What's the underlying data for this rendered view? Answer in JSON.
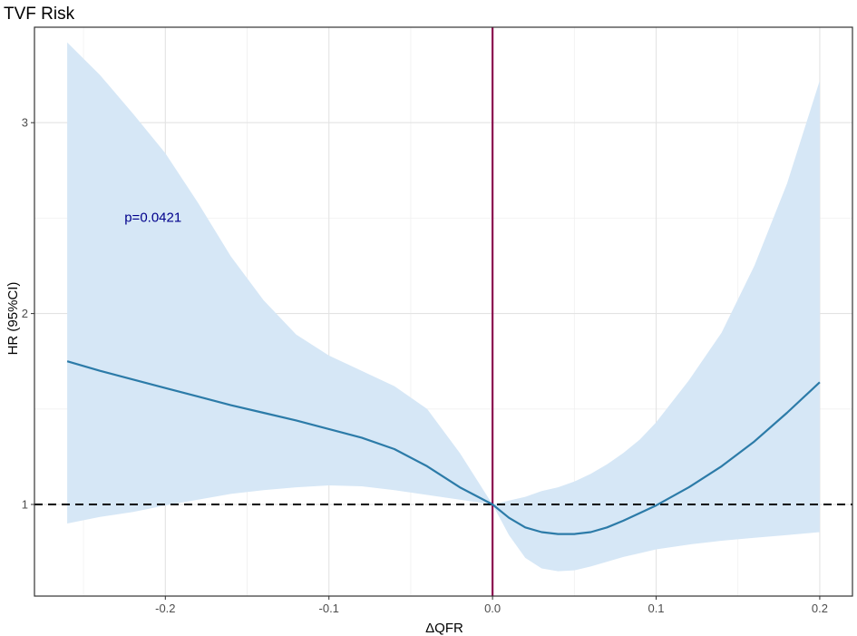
{
  "chart_data": {
    "type": "line",
    "title": "TVF Risk",
    "xlabel": "ΔQFR",
    "ylabel": "HR (95%CI)",
    "xlim": [
      -0.28,
      0.22
    ],
    "ylim": [
      0.52,
      3.5
    ],
    "x_ticks": [
      -0.2,
      -0.1,
      0.0,
      0.1,
      0.2
    ],
    "x_tick_labels": [
      "-0.2",
      "-0.1",
      "0.0",
      "0.1",
      "0.2"
    ],
    "y_ticks": [
      1,
      2,
      3
    ],
    "y_tick_labels": [
      "1",
      "2",
      "3"
    ],
    "grid": true,
    "annotation": {
      "text": "p=0.0421",
      "x": -0.225,
      "y": 2.48,
      "color": "#00008b"
    },
    "reference_lines": [
      {
        "orientation": "horizontal",
        "value": 1,
        "style": "dashed",
        "color": "#000000"
      },
      {
        "orientation": "vertical",
        "value": 0,
        "style": "solid",
        "color": "#8b0a50"
      }
    ],
    "series": [
      {
        "x": [
          -0.26,
          -0.24,
          -0.22,
          -0.2,
          -0.18,
          -0.16,
          -0.14,
          -0.12,
          -0.1,
          -0.08,
          -0.06,
          -0.04,
          -0.02,
          0.0,
          0.01,
          0.02,
          0.03,
          0.04,
          0.05,
          0.06,
          0.07,
          0.08,
          0.09,
          0.1,
          0.12,
          0.14,
          0.16,
          0.18,
          0.2
        ],
        "values": [
          1.75,
          1.7,
          1.655,
          1.61,
          1.565,
          1.52,
          1.48,
          1.44,
          1.395,
          1.35,
          1.29,
          1.2,
          1.09,
          1.0,
          0.93,
          0.88,
          0.855,
          0.845,
          0.845,
          0.855,
          0.88,
          0.915,
          0.955,
          0.995,
          1.09,
          1.2,
          1.33,
          1.48,
          1.64
        ],
        "lower": [
          0.9,
          0.935,
          0.96,
          0.995,
          1.025,
          1.055,
          1.075,
          1.09,
          1.1,
          1.095,
          1.075,
          1.05,
          1.025,
          1.0,
          0.84,
          0.72,
          0.665,
          0.65,
          0.655,
          0.675,
          0.7,
          0.725,
          0.745,
          0.765,
          0.79,
          0.81,
          0.825,
          0.84,
          0.855
        ],
        "upper": [
          3.42,
          3.25,
          3.05,
          2.84,
          2.58,
          2.3,
          2.07,
          1.89,
          1.78,
          1.7,
          1.62,
          1.5,
          1.27,
          1.0,
          1.02,
          1.04,
          1.07,
          1.09,
          1.12,
          1.16,
          1.21,
          1.27,
          1.34,
          1.43,
          1.65,
          1.9,
          2.25,
          2.68,
          3.22
        ],
        "line_color": "#2c7ba8",
        "band_color": "#d6e7f6"
      }
    ]
  }
}
